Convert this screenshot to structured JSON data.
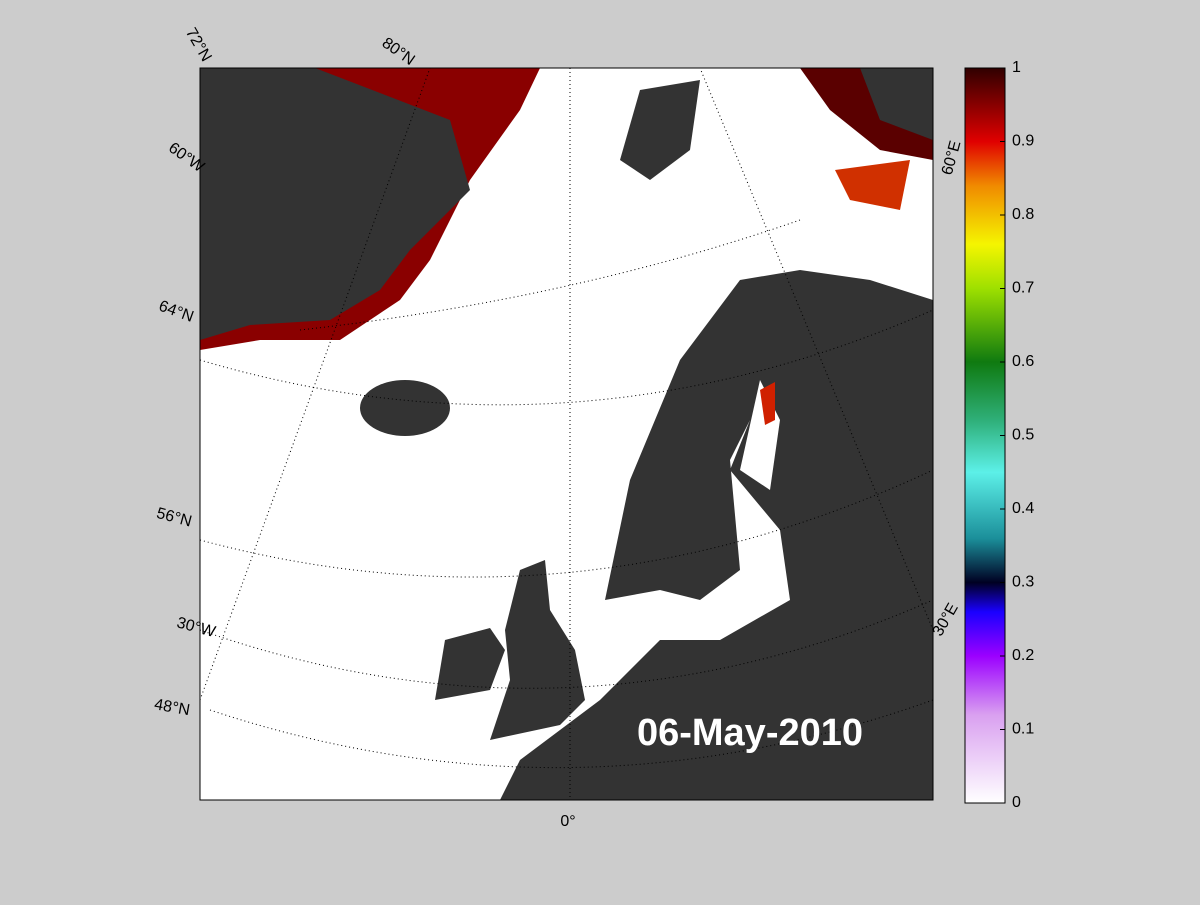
{
  "map": {
    "date_label": "06-May-2010",
    "lat_labels": [
      "72°N",
      "80°N",
      "60°W",
      "64°N",
      "56°N",
      "30°W",
      "48°N",
      "0°",
      "30°E",
      "60°E"
    ]
  },
  "colorbar": {
    "lim": [
      0,
      1
    ],
    "ticks": [
      0,
      0.1,
      0.2,
      0.3,
      0.4,
      0.5,
      0.6,
      0.7,
      0.8,
      0.9,
      1
    ]
  }
}
